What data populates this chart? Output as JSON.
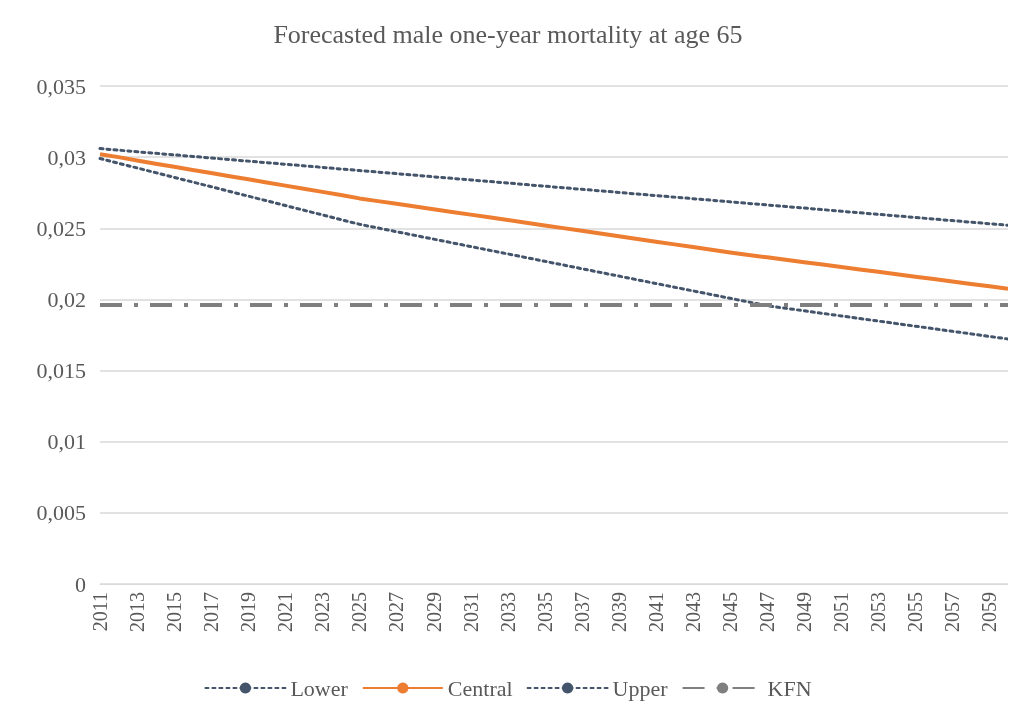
{
  "chart_data": {
    "type": "line",
    "title": "Forecasted male one-year mortality at age 65",
    "categories": [
      "2011",
      null,
      "2013",
      null,
      "2015",
      null,
      "2017",
      null,
      "2019",
      null,
      "2021",
      null,
      "2023",
      null,
      "2025",
      null,
      "2027",
      null,
      "2029",
      null,
      "2031",
      null,
      "2033",
      null,
      "2035",
      null,
      "2037",
      null,
      "2039",
      null,
      "2041",
      null,
      "2043",
      null,
      "2045",
      null,
      "2047",
      null,
      "2049",
      null,
      "2051",
      null,
      "2053",
      null,
      "2055",
      null,
      "2057",
      null,
      "2059",
      null
    ],
    "series": [
      {
        "name": "Lower",
        "color": "#44546a",
        "line_style": "dotted",
        "values": [
          0.0299,
          0.02957,
          0.02924,
          0.02891,
          0.02858,
          0.02825,
          0.02792,
          0.02759,
          0.02726,
          0.02693,
          0.0266,
          0.02627,
          0.02594,
          0.02561,
          0.02528,
          0.02502,
          0.02476,
          0.0245,
          0.02424,
          0.02398,
          0.02372,
          0.02346,
          0.0232,
          0.02294,
          0.02268,
          0.02242,
          0.02216,
          0.0219,
          0.02164,
          0.02138,
          0.02112,
          0.02086,
          0.0206,
          0.02034,
          0.02008,
          0.01982,
          0.01956,
          0.01938,
          0.0192,
          0.01902,
          0.01884,
          0.01866,
          0.01848,
          0.0183,
          0.01812,
          0.01794,
          0.01776,
          0.01758,
          0.0174,
          0.01722
        ]
      },
      {
        "name": "Central",
        "color": "#ed7d31",
        "line_style": "solid",
        "values": [
          0.0302,
          0.03,
          0.02976,
          0.02954,
          0.02932,
          0.0291,
          0.02888,
          0.02866,
          0.02844,
          0.02822,
          0.028,
          0.02778,
          0.02756,
          0.02734,
          0.0271,
          0.02691,
          0.02672,
          0.02653,
          0.02634,
          0.02615,
          0.02596,
          0.02577,
          0.02558,
          0.02539,
          0.0252,
          0.02501,
          0.02482,
          0.02463,
          0.02444,
          0.02425,
          0.02406,
          0.02387,
          0.02368,
          0.02349,
          0.0233,
          0.02313,
          0.02296,
          0.02279,
          0.02262,
          0.02245,
          0.02228,
          0.02211,
          0.02194,
          0.02177,
          0.0216,
          0.02143,
          0.02126,
          0.02109,
          0.02092,
          0.02075
        ]
      },
      {
        "name": "Upper",
        "color": "#44546a",
        "line_style": "dotted",
        "values": [
          0.0306,
          0.03049,
          0.03038,
          0.03027,
          0.03016,
          0.03005,
          0.02994,
          0.02983,
          0.02972,
          0.02961,
          0.0295,
          0.02939,
          0.02928,
          0.02917,
          0.02906,
          0.02895,
          0.02884,
          0.02873,
          0.02862,
          0.02851,
          0.0284,
          0.02829,
          0.02818,
          0.02807,
          0.02796,
          0.02785,
          0.02774,
          0.02763,
          0.02752,
          0.02741,
          0.0273,
          0.02719,
          0.02708,
          0.02697,
          0.02686,
          0.02675,
          0.02664,
          0.02653,
          0.02642,
          0.02631,
          0.0262,
          0.02609,
          0.02598,
          0.02587,
          0.02576,
          0.02565,
          0.02554,
          0.02543,
          0.02532,
          0.02521
        ]
      },
      {
        "name": "KFN",
        "color": "#7f7f7f",
        "line_style": "dashed",
        "values": [
          0.0196,
          0.0196,
          0.0196,
          0.0196,
          0.0196,
          0.0196,
          0.0196,
          0.0196,
          0.0196,
          0.0196,
          0.0196,
          0.0196,
          0.0196,
          0.0196,
          0.0196,
          0.0196,
          0.0196,
          0.0196,
          0.0196,
          0.0196,
          0.0196,
          0.0196,
          0.0196,
          0.0196,
          0.0196,
          0.0196,
          0.0196,
          0.0196,
          0.0196,
          0.0196,
          0.0196,
          0.0196,
          0.0196,
          0.0196,
          0.0196,
          0.0196,
          0.0196,
          0.0196,
          0.0196,
          0.0196,
          0.0196,
          0.0196,
          0.0196,
          0.0196,
          0.0196,
          0.0196,
          0.0196,
          0.0196,
          0.0196,
          0.0196
        ]
      }
    ],
    "ylim": [
      0,
      0.035
    ],
    "yticks": [
      {
        "value": 0,
        "label": "0"
      },
      {
        "value": 0.005,
        "label": "0,005"
      },
      {
        "value": 0.01,
        "label": "0,01"
      },
      {
        "value": 0.015,
        "label": "0,015"
      },
      {
        "value": 0.02,
        "label": "0,02"
      },
      {
        "value": 0.025,
        "label": "0,025"
      },
      {
        "value": 0.03,
        "label": "0,03"
      },
      {
        "value": 0.035,
        "label": "0,035"
      }
    ],
    "grid": "y",
    "legend": "bottom",
    "marker": "none"
  }
}
